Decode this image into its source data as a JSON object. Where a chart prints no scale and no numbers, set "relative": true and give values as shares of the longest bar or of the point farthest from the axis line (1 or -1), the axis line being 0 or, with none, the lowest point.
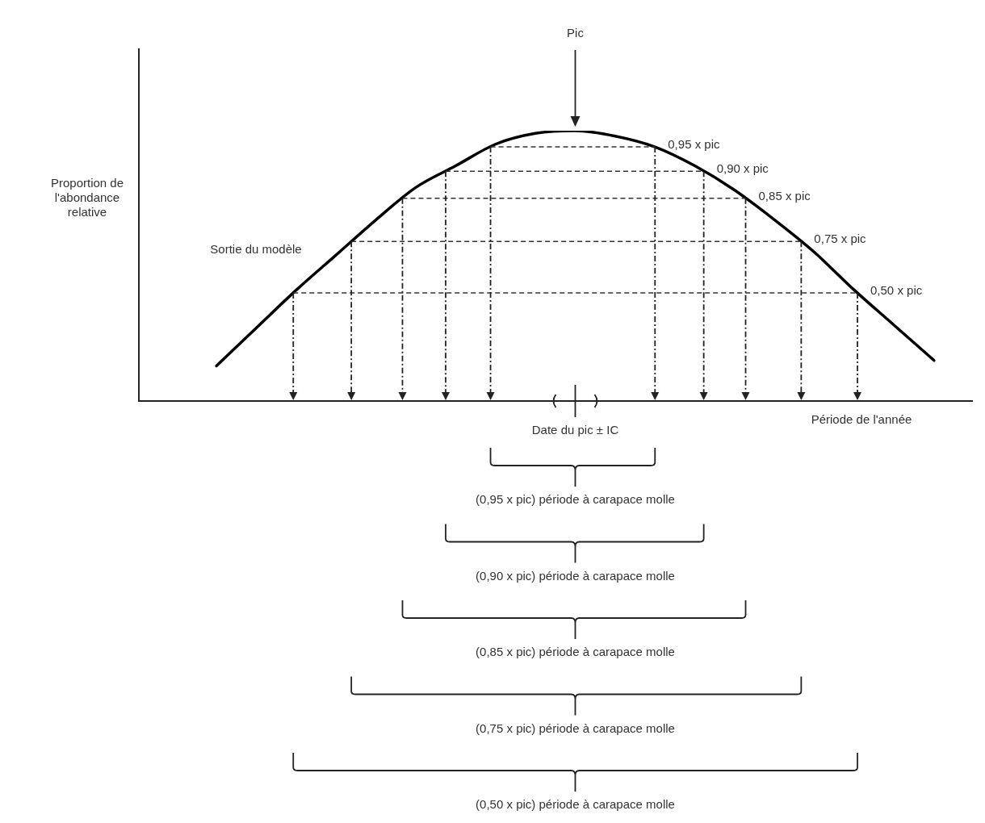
{
  "chart_data": {
    "type": "line",
    "relative": true,
    "xlabel": "Période de l'année",
    "categories": [
      null,
      null,
      null,
      null,
      null,
      null,
      null,
      null,
      null,
      null,
      null,
      null,
      null,
      null,
      null,
      null,
      null,
      null,
      null
    ],
    "series": [
      {
        "color": "#000000",
        "values": [
          0.13,
          0.27,
          0.41,
          0.54,
          0.67,
          0.79,
          0.87,
          0.95,
          0.99,
          1,
          0.98,
          0.94,
          0.87,
          0.78,
          0.67,
          0.55,
          0.41,
          0.28,
          0.15
        ]
      }
    ],
    "marker": "none",
    "line_style": "solid",
    "legend": false,
    "ref_lines": [
      {
        "axis": "y",
        "value": 0.94,
        "label": "0,95 x pic",
        "color": "#333333",
        "line_style": "dashed"
      },
      {
        "axis": "y",
        "value": 0.85,
        "label": "0,90 x pic",
        "color": "#333333",
        "line_style": "dashed"
      },
      {
        "axis": "y",
        "value": 0.75,
        "label": "0,85 x pic",
        "color": "#333333",
        "line_style": "dashed"
      },
      {
        "axis": "y",
        "value": 0.59,
        "label": "0,75 x pic",
        "color": "#333333",
        "line_style": "dashed"
      },
      {
        "axis": "y",
        "value": 0.4,
        "label": "0,50 x pic",
        "color": "#333333",
        "line_style": "dashed"
      }
    ],
    "annotations": [
      "Pic",
      "Sortie du modèle",
      "Date du pic ± IC",
      "(0,95 x pic) période à carapace molle",
      "(0,90 x pic) période à carapace molle",
      "(0,85 x pic) période à carapace molle",
      "(0,75 x pic) période à carapace molle",
      "(0,50 x pic) période à carapace molle",
      "Proportion de l'abondance relative"
    ]
  }
}
